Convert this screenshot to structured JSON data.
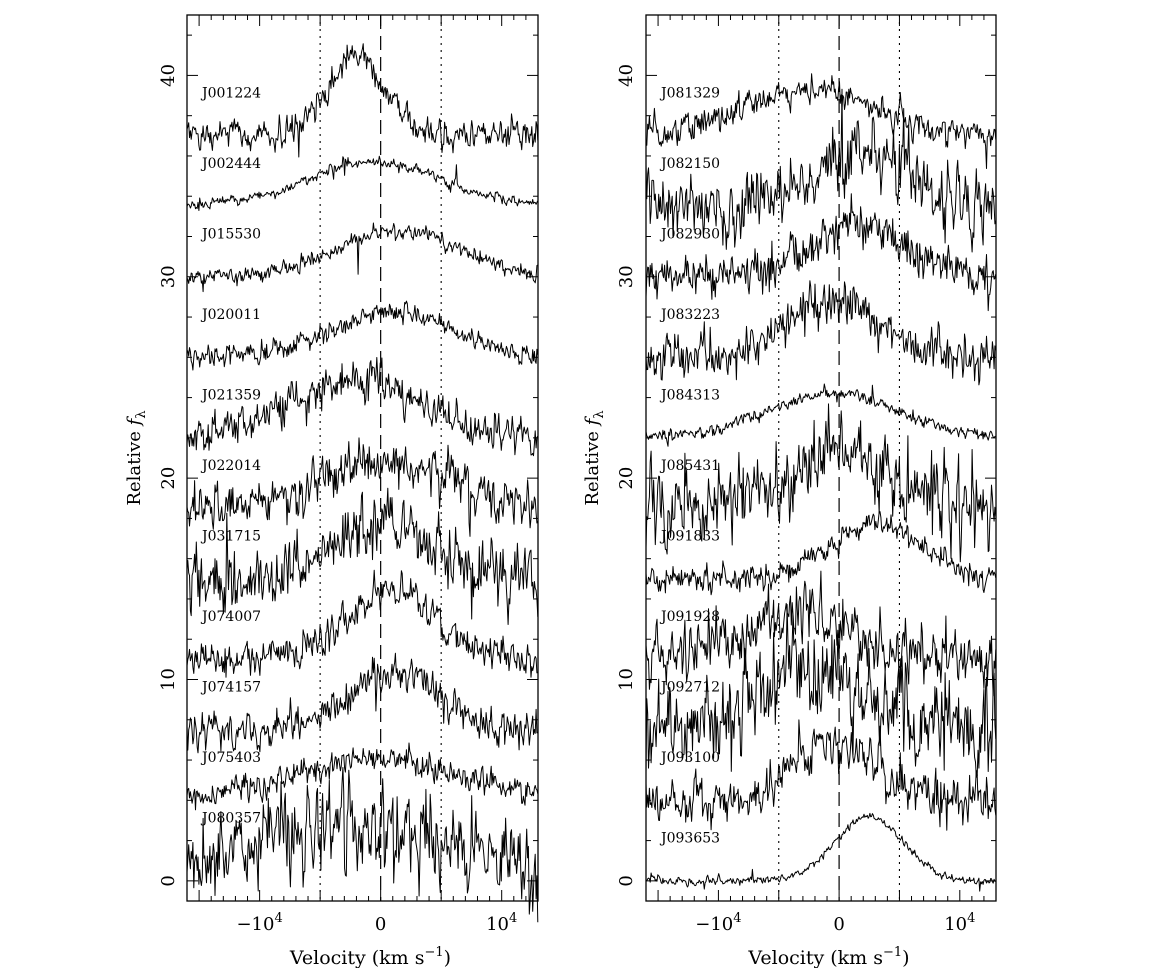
{
  "chart_data": [
    {
      "type": "line",
      "xlabel": "Velocity (km s$^{-1}$)",
      "xlabel_text": "Velocity (km s",
      "xlabel_sup": "−1",
      "xlabel_close": ")",
      "ylabel": "Relative f_λ",
      "ylabel_text": "Relative ",
      "ylabel_f": "f",
      "ylabel_sub": "λ",
      "xlim": [
        -16000,
        13000
      ],
      "ylim": [
        -1,
        43
      ],
      "x_ticks": [
        {
          "value": -10000,
          "label": "−10",
          "exp": "4"
        },
        {
          "value": 0,
          "label": "0",
          "exp": ""
        },
        {
          "value": 10000,
          "label": "10",
          "exp": "4"
        }
      ],
      "y_ticks": [
        0,
        10,
        20,
        30,
        40
      ],
      "reference_lines": {
        "dashed": 0,
        "dotted": [
          -5000,
          5000
        ]
      },
      "series": [
        {
          "name": "J001224",
          "offset": 37,
          "peak_v": -2000,
          "width": 2300,
          "amp": 4,
          "noise": 0.35
        },
        {
          "name": "J002444",
          "offset": 33.5,
          "peak_v": -500,
          "width": 5500,
          "amp": 2.2,
          "noise": 0.12
        },
        {
          "name": "J015530",
          "offset": 30,
          "peak_v": 1500,
          "width": 5000,
          "amp": 2.3,
          "noise": 0.2
        },
        {
          "name": "J020011",
          "offset": 26,
          "peak_v": 1000,
          "width": 5000,
          "amp": 2.3,
          "noise": 0.25
        },
        {
          "name": "J021359",
          "offset": 22,
          "peak_v": -2000,
          "width": 5000,
          "amp": 3,
          "noise": 0.45
        },
        {
          "name": "J022014",
          "offset": 18.5,
          "peak_v": 0,
          "width": 5500,
          "amp": 2.3,
          "noise": 0.55
        },
        {
          "name": "J031715",
          "offset": 15,
          "peak_v": 0,
          "width": 4000,
          "amp": 2.7,
          "noise": 0.75
        },
        {
          "name": "J074007",
          "offset": 11,
          "peak_v": 1000,
          "width": 3800,
          "amp": 3.3,
          "noise": 0.4
        },
        {
          "name": "J074157",
          "offset": 7.5,
          "peak_v": 1000,
          "width": 3800,
          "amp": 2.7,
          "noise": 0.45
        },
        {
          "name": "J075403",
          "offset": 4,
          "peak_v": 0,
          "width": 7000,
          "amp": 2,
          "noise": 0.35
        },
        {
          "name": "J080357",
          "offset": 1,
          "peak_v": -3000,
          "width": 6500,
          "amp": 1.5,
          "noise": 1.1
        }
      ]
    },
    {
      "type": "line",
      "xlabel": "Velocity (km s$^{-1}$)",
      "xlabel_text": "Velocity (km s",
      "xlabel_sup": "−1",
      "xlabel_close": ")",
      "ylabel": "Relative f_λ",
      "ylabel_text": "Relative ",
      "ylabel_f": "f",
      "ylabel_sub": "λ",
      "xlim": [
        -16000,
        13000
      ],
      "ylim": [
        -1,
        43
      ],
      "x_ticks": [
        {
          "value": -10000,
          "label": "−10",
          "exp": "4"
        },
        {
          "value": 0,
          "label": "0",
          "exp": ""
        },
        {
          "value": 10000,
          "label": "10",
          "exp": "4"
        }
      ],
      "y_ticks": [
        0,
        10,
        20,
        30,
        40
      ],
      "reference_lines": {
        "dashed": 0,
        "dotted": [
          -5000,
          5000
        ]
      },
      "series": [
        {
          "name": "J081329",
          "offset": 37,
          "peak_v": -2500,
          "width": 5500,
          "amp": 2.3,
          "noise": 0.35
        },
        {
          "name": "J082150",
          "offset": 33.5,
          "peak_v": 2000,
          "width": 3800,
          "amp": 2.5,
          "noise": 0.8
        },
        {
          "name": "J082930",
          "offset": 30,
          "peak_v": 1500,
          "width": 3500,
          "amp": 2.8,
          "noise": 0.5
        },
        {
          "name": "J083223",
          "offset": 26,
          "peak_v": -500,
          "width": 3500,
          "amp": 3,
          "noise": 0.5
        },
        {
          "name": "J084313",
          "offset": 22,
          "peak_v": -500,
          "width": 5500,
          "amp": 2.2,
          "noise": 0.15
        },
        {
          "name": "J085431",
          "offset": 18.5,
          "peak_v": 0,
          "width": 4200,
          "amp": 2.8,
          "noise": 0.9
        },
        {
          "name": "J091833",
          "offset": 15,
          "peak_v": 3000,
          "width": 3800,
          "amp": 2.8,
          "noise": 0.3
        },
        {
          "name": "J091928",
          "offset": 11,
          "peak_v": -3500,
          "width": 4500,
          "amp": 2.5,
          "noise": 0.7
        },
        {
          "name": "J092712",
          "offset": 7.5,
          "peak_v": -2500,
          "width": 4500,
          "amp": 3,
          "noise": 1.1
        },
        {
          "name": "J093100",
          "offset": 4,
          "peak_v": -500,
          "width": 3500,
          "amp": 2.8,
          "noise": 0.55
        },
        {
          "name": "J093653",
          "offset": 0,
          "peak_v": 2500,
          "width": 2800,
          "amp": 3.2,
          "noise": 0.1
        }
      ]
    }
  ]
}
